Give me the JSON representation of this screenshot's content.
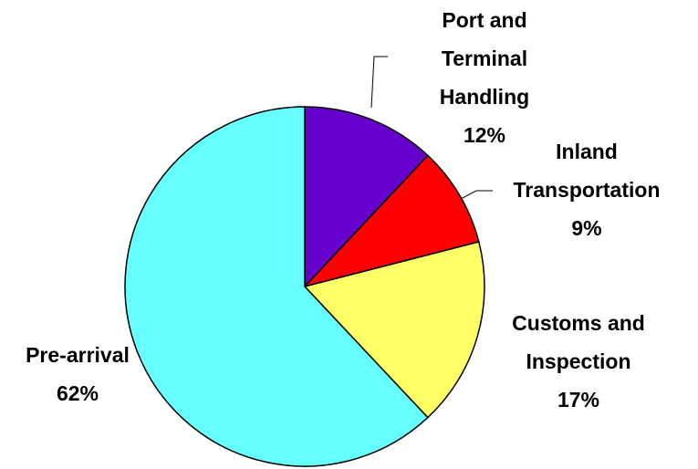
{
  "chart_data": {
    "type": "pie",
    "categories": [
      "Port and Terminal Handling",
      "Inland Transportation",
      "Customs and Inspection",
      "Pre-arrival"
    ],
    "values": [
      12,
      9,
      17,
      62
    ],
    "value_labels": [
      "12%",
      "9%",
      "17%",
      "62%"
    ],
    "colors": [
      "#6600cc",
      "#ff0000",
      "#ffff66",
      "#66ffff"
    ]
  }
}
